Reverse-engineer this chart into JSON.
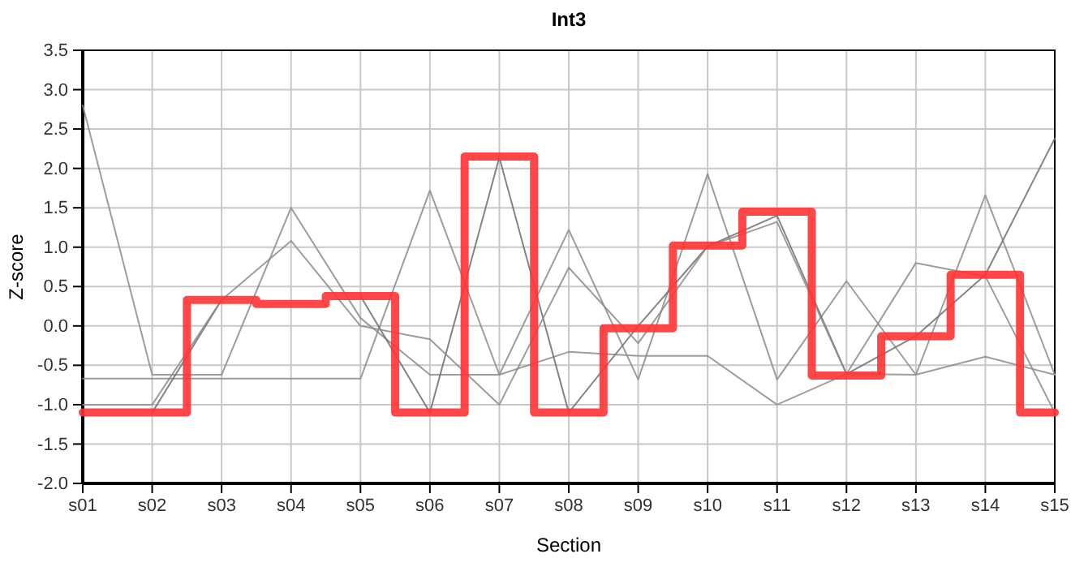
{
  "chart_data": {
    "type": "line",
    "title": "Int3",
    "xlabel": "Section",
    "ylabel": "Z-score",
    "categories": [
      "s01",
      "s02",
      "s03",
      "s04",
      "s05",
      "s06",
      "s07",
      "s08",
      "s09",
      "s10",
      "s11",
      "s12",
      "s13",
      "s14",
      "s15"
    ],
    "series": [
      {
        "color": "#8c8c8c",
        "values": [
          2.8,
          -0.62,
          -0.62,
          1.5,
          0.1,
          -0.62,
          -0.62,
          1.22,
          -0.68,
          1.93,
          -0.68,
          0.57,
          -0.62,
          1.66,
          -0.62
        ]
      },
      {
        "color": "#8c8c8c",
        "values": [
          -0.67,
          -0.67,
          -0.67,
          -0.67,
          -0.67,
          1.72,
          -0.62,
          -0.33,
          -0.38,
          -0.38,
          -1.0,
          -0.61,
          -0.62,
          -0.39,
          -0.62
        ]
      },
      {
        "color": "#707070",
        "values": [
          null,
          -1.1,
          0.33,
          null,
          0.38,
          -1.1,
          2.14,
          -1.1,
          0.0,
          1.01,
          1.4,
          -0.61,
          -0.13,
          0.65,
          2.38
        ]
      },
      {
        "color": "#8c8c8c",
        "values": [
          -1.0,
          -1.0,
          0.33,
          1.08,
          0.0,
          -0.17,
          -1.0,
          0.74,
          -0.22,
          1.01,
          1.32,
          -0.61,
          0.8,
          0.63,
          -1.1
        ]
      },
      {
        "type": "step",
        "color": "#ff3333",
        "values": [
          -1.1,
          -1.1,
          0.33,
          0.28,
          0.38,
          -1.1,
          2.15,
          -1.1,
          -0.03,
          1.02,
          1.45,
          -0.63,
          -0.13,
          0.65,
          -1.1
        ]
      }
    ],
    "ylim": [
      -2,
      3.5
    ],
    "yticks": [
      {
        "value": -2,
        "label": "-2.0"
      },
      {
        "value": -1.5,
        "label": "-1.5"
      },
      {
        "value": -1,
        "label": "-1.0"
      },
      {
        "value": -0.5,
        "label": "-0.5"
      },
      {
        "value": 0,
        "label": "0.0"
      },
      {
        "value": 0.5,
        "label": "0.5"
      },
      {
        "value": 1,
        "label": "1.0"
      },
      {
        "value": 1.5,
        "label": "1.5"
      },
      {
        "value": 2,
        "label": "2.0"
      },
      {
        "value": 2.5,
        "label": "2.5"
      },
      {
        "value": 3,
        "label": "3.0"
      },
      {
        "value": 3.5,
        "label": "3.5"
      }
    ],
    "grid": true
  }
}
